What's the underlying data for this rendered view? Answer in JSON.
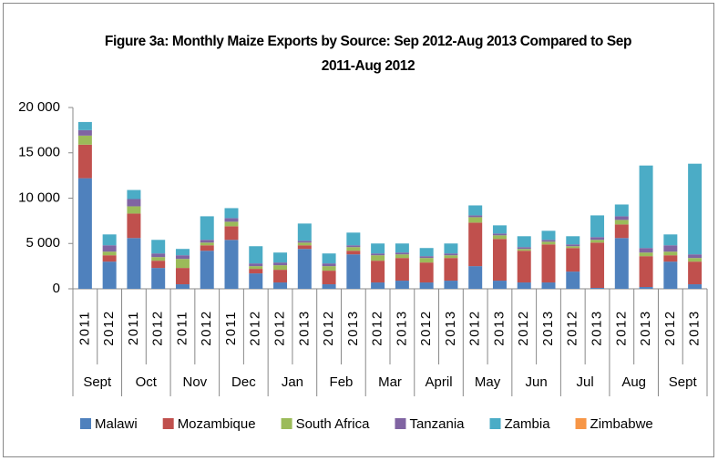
{
  "chart_data": {
    "type": "bar",
    "stacked": true,
    "title": "Figure 3a: Monthly Maize Exports by Source: Sep 2012-Aug 2013 Compared to Sep 2011-Aug 2012",
    "categories": [
      "2011",
      "2012",
      "2011",
      "2012",
      "2011",
      "2012",
      "2011",
      "2012",
      "2012",
      "2013",
      "2012",
      "2013",
      "2012",
      "2013",
      "2012",
      "2013",
      "2012",
      "2013",
      "2012",
      "2013",
      "2012",
      "2013",
      "2012",
      "2013",
      "2012",
      "2013"
    ],
    "groups": [
      "Sept",
      "Oct",
      "Nov",
      "Dec",
      "Jan",
      "Feb",
      "Mar",
      "April",
      "May",
      "Jun",
      "Jul",
      "Aug",
      "Sept"
    ],
    "series": [
      {
        "name": "Malawi",
        "color": "#4f81bd",
        "values": [
          12200,
          3000,
          5600,
          2300,
          500,
          4200,
          5400,
          1700,
          700,
          4400,
          500,
          3800,
          700,
          900,
          700,
          900,
          2500,
          900,
          700,
          700,
          1900,
          100,
          5600,
          200,
          3000,
          500
        ]
      },
      {
        "name": "Mozambique",
        "color": "#c0504d",
        "values": [
          3700,
          700,
          2700,
          800,
          1800,
          600,
          1500,
          500,
          1400,
          400,
          1500,
          400,
          2400,
          2500,
          2200,
          2500,
          4800,
          4600,
          3500,
          4200,
          2600,
          5000,
          1500,
          3400,
          700,
          2500
        ]
      },
      {
        "name": "South Africa",
        "color": "#9bbb59",
        "values": [
          1000,
          400,
          800,
          400,
          1000,
          300,
          500,
          300,
          500,
          300,
          500,
          400,
          600,
          400,
          500,
          300,
          600,
          400,
          200,
          300,
          200,
          300,
          500,
          400,
          400,
          400
        ]
      },
      {
        "name": "Tanzania",
        "color": "#8064a2",
        "values": [
          600,
          700,
          800,
          400,
          400,
          300,
          400,
          300,
          300,
          200,
          300,
          200,
          200,
          200,
          200,
          200,
          200,
          200,
          200,
          200,
          200,
          300,
          400,
          500,
          700,
          400
        ]
      },
      {
        "name": "Zambia",
        "color": "#4bacc6",
        "values": [
          900,
          1200,
          1000,
          1500,
          700,
          2600,
          1100,
          1900,
          1100,
          1900,
          1100,
          1400,
          1100,
          1000,
          900,
          1100,
          1100,
          900,
          1200,
          1000,
          900,
          2400,
          1300,
          9100,
          1200,
          10000
        ]
      },
      {
        "name": "Zimbabwe",
        "color": "#f79646",
        "values": [
          0,
          0,
          0,
          0,
          0,
          0,
          0,
          0,
          0,
          0,
          0,
          0,
          0,
          0,
          0,
          0,
          0,
          0,
          0,
          0,
          0,
          0,
          0,
          0,
          0,
          0
        ]
      }
    ],
    "ylim": [
      0,
      20000
    ],
    "yticks": [
      0,
      {
        "value": 5000,
        "label": "5 000"
      },
      {
        "value": 10000,
        "label": "10 000"
      },
      {
        "value": 15000,
        "label": "15 000"
      },
      {
        "value": 20000,
        "label": "20 000"
      }
    ],
    "grid": false,
    "legend": "bottom"
  }
}
